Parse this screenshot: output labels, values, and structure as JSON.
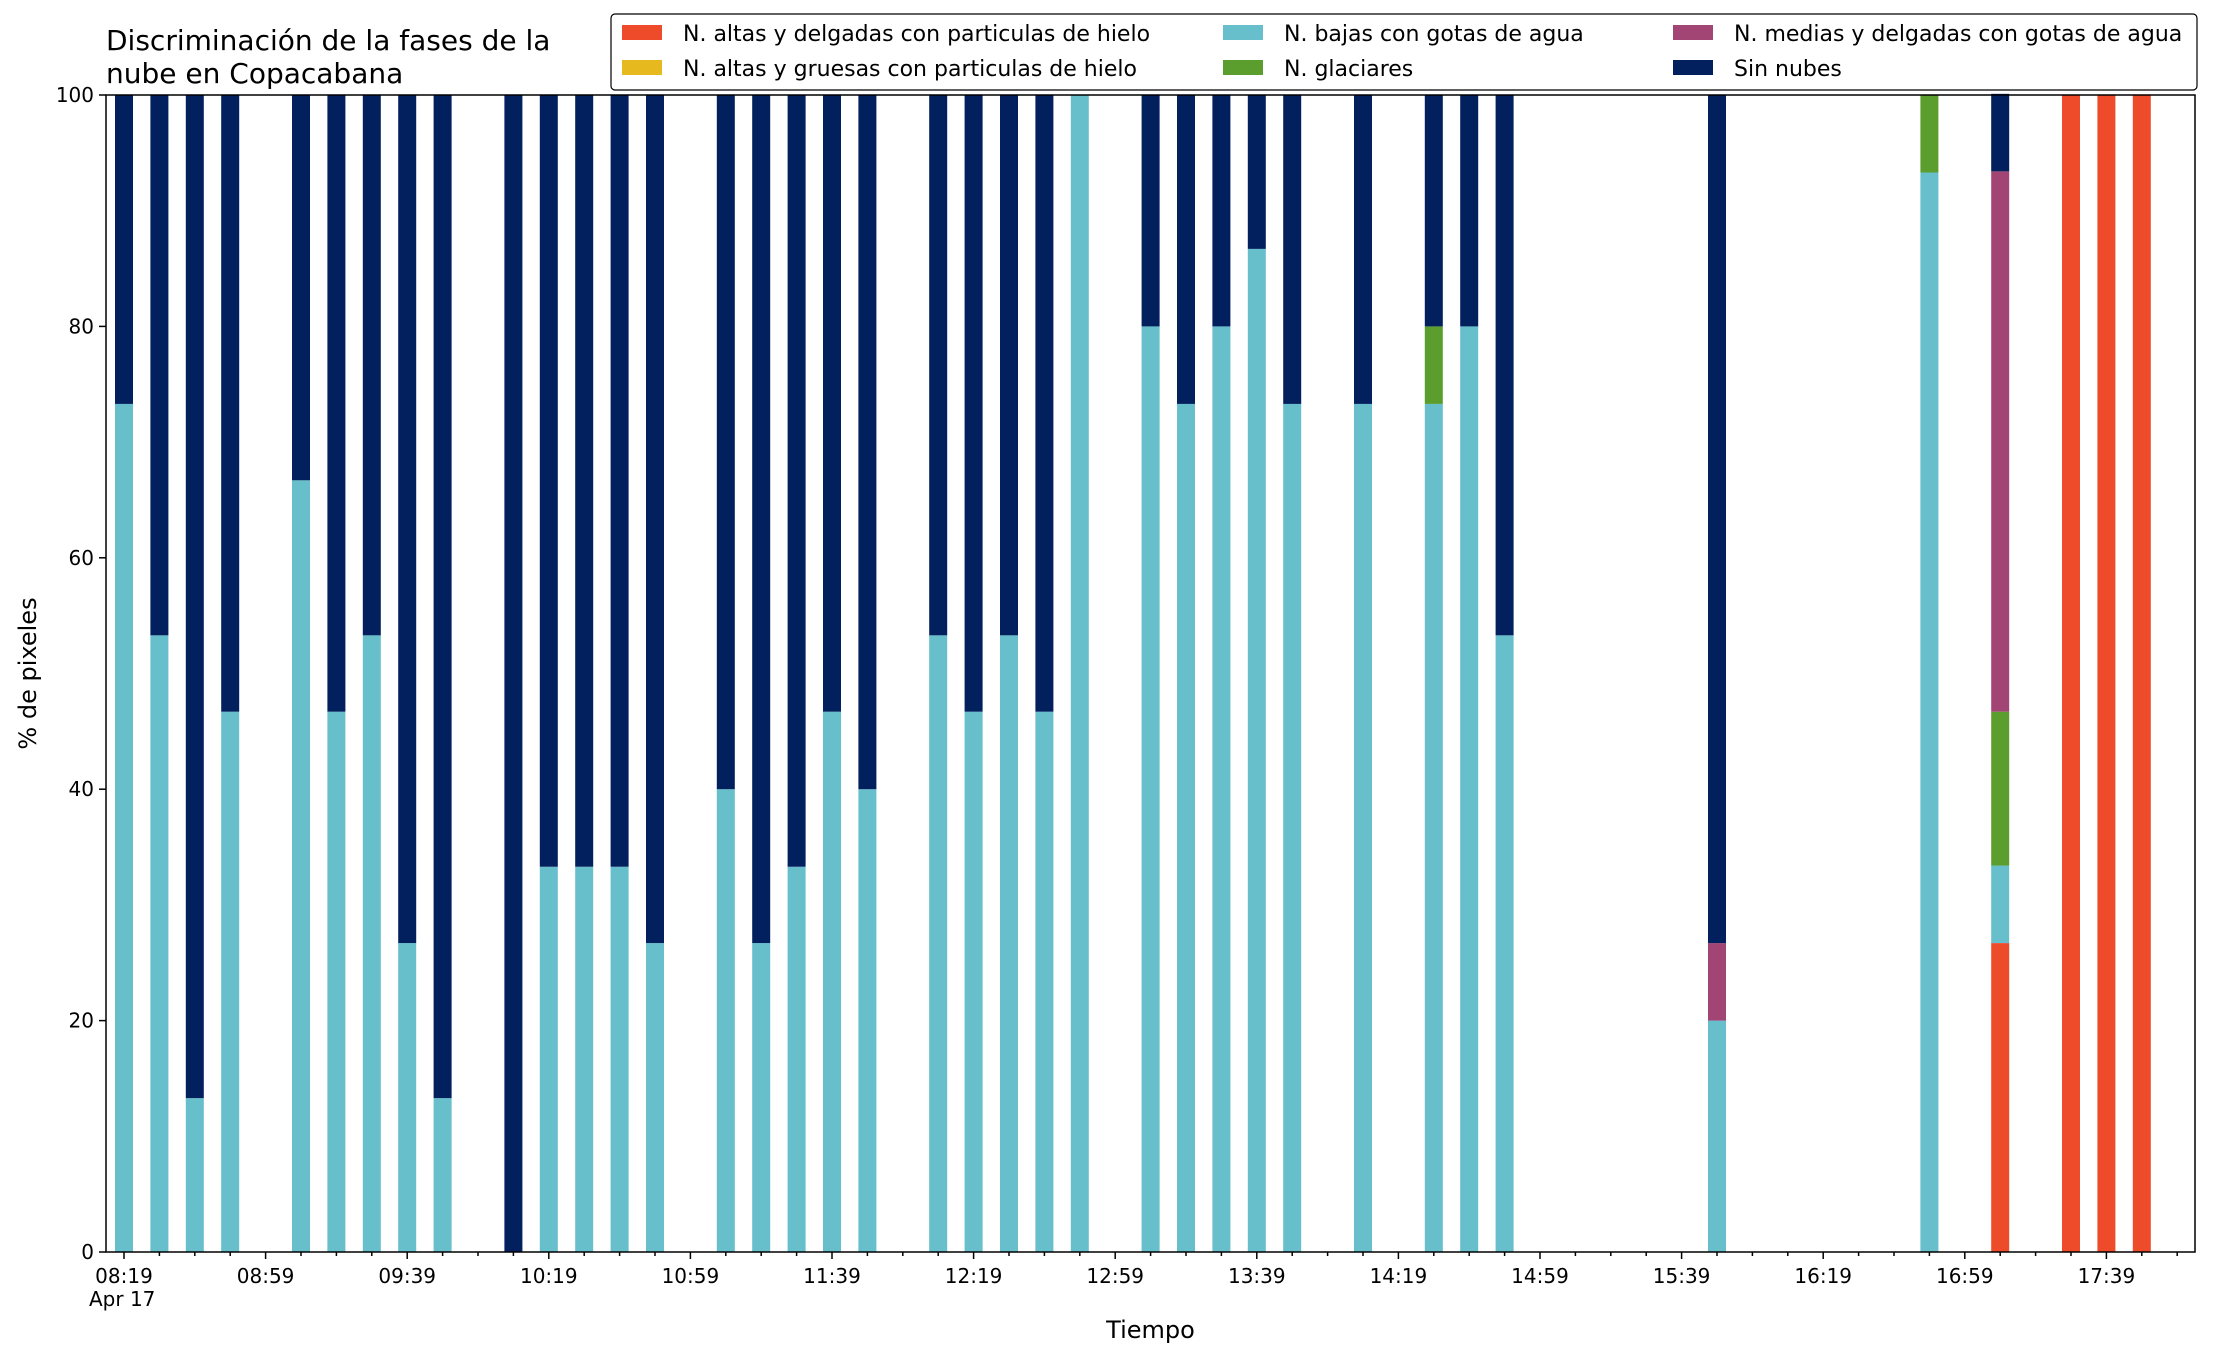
{
  "chart_data": {
    "type": "bar",
    "stacked": true,
    "title_lines": [
      "Discriminación de la fases de la",
      "nube en Copacabana"
    ],
    "xlabel": "Tiempo",
    "ylabel": "% de pixeles",
    "ylim": [
      0,
      100
    ],
    "y_ticks": [
      0,
      20,
      40,
      60,
      80,
      100
    ],
    "x_tick_labels": [
      "08:19",
      "08:59",
      "09:39",
      "10:19",
      "10:59",
      "11:39",
      "12:19",
      "12:59",
      "13:39",
      "14:19",
      "14:59",
      "15:39",
      "16:19",
      "16:59",
      "17:39"
    ],
    "x_date_label": "Apr 17",
    "minutes_per_slot": 10,
    "slots_per_major_tick": 4,
    "total_slots": 59,
    "legend_position": "top-right",
    "series": [
      {
        "name": "N. altas y delgadas con particulas de hielo",
        "color": "#ee4b2b"
      },
      {
        "name": "N. altas y gruesas con particulas de hielo",
        "color": "#e6b91e"
      },
      {
        "name": "N. bajas con gotas de agua",
        "color": "#66bfcb"
      },
      {
        "name": "N. glaciares",
        "color": "#5c9e2e"
      },
      {
        "name": "N. medias y delgadas con gotas de agua",
        "color": "#a24575"
      },
      {
        "name": "Sin nubes",
        "color": "#021f5e"
      }
    ],
    "stack_order": [
      0,
      1,
      2,
      3,
      4,
      5
    ],
    "bars": [
      {
        "time": "08:19",
        "values": [
          0,
          0,
          73.3,
          0,
          0,
          26.7
        ]
      },
      {
        "time": "08:29",
        "values": [
          0,
          0,
          53.3,
          0,
          0,
          46.7
        ]
      },
      {
        "time": "08:39",
        "values": [
          0,
          0,
          13.3,
          0,
          0,
          86.7
        ]
      },
      {
        "time": "08:49",
        "values": [
          0,
          0,
          46.7,
          0,
          0,
          53.3
        ]
      },
      {
        "time": "09:09",
        "values": [
          0,
          0,
          66.7,
          0,
          0,
          33.3
        ]
      },
      {
        "time": "09:19",
        "values": [
          0,
          0,
          46.7,
          0,
          0,
          53.3
        ]
      },
      {
        "time": "09:29",
        "values": [
          0,
          0,
          53.3,
          0,
          0,
          46.7
        ]
      },
      {
        "time": "09:39",
        "values": [
          0,
          0,
          26.7,
          0,
          0,
          73.3
        ]
      },
      {
        "time": "09:49",
        "values": [
          0,
          0,
          13.3,
          0,
          0,
          86.7
        ]
      },
      {
        "time": "10:09",
        "values": [
          0,
          0,
          0,
          0,
          0,
          100
        ]
      },
      {
        "time": "10:19",
        "values": [
          0,
          0,
          33.3,
          0,
          0,
          66.7
        ]
      },
      {
        "time": "10:29",
        "values": [
          0,
          0,
          33.3,
          0,
          0,
          66.7
        ]
      },
      {
        "time": "10:39",
        "values": [
          0,
          0,
          33.3,
          0,
          0,
          66.7
        ]
      },
      {
        "time": "10:49",
        "values": [
          0,
          0,
          26.7,
          0,
          0,
          73.3
        ]
      },
      {
        "time": "11:09",
        "values": [
          0,
          0,
          40,
          0,
          0,
          60
        ]
      },
      {
        "time": "11:19",
        "values": [
          0,
          0,
          26.7,
          0,
          0,
          73.3
        ]
      },
      {
        "time": "11:29",
        "values": [
          0,
          0,
          33.3,
          0,
          0,
          66.7
        ]
      },
      {
        "time": "11:39",
        "values": [
          0,
          0,
          46.7,
          0,
          0,
          53.3
        ]
      },
      {
        "time": "11:49",
        "values": [
          0,
          0,
          40,
          0,
          0,
          60
        ]
      },
      {
        "time": "12:09",
        "values": [
          0,
          0,
          53.3,
          0,
          0,
          46.7
        ]
      },
      {
        "time": "12:19",
        "values": [
          0,
          0,
          46.7,
          0,
          0,
          53.3
        ]
      },
      {
        "time": "12:29",
        "values": [
          0,
          0,
          53.3,
          0,
          0,
          46.7
        ]
      },
      {
        "time": "12:39",
        "values": [
          0,
          0,
          46.7,
          0,
          0,
          53.3
        ]
      },
      {
        "time": "12:49",
        "values": [
          0,
          0,
          100,
          0,
          0,
          0
        ]
      },
      {
        "time": "13:09",
        "values": [
          0,
          0,
          80,
          0,
          0,
          20
        ]
      },
      {
        "time": "13:19",
        "values": [
          0,
          0,
          73.3,
          0,
          0,
          26.7
        ]
      },
      {
        "time": "13:29",
        "values": [
          0,
          0,
          80,
          0,
          0,
          20
        ]
      },
      {
        "time": "13:39",
        "values": [
          0,
          0,
          86.7,
          0,
          0,
          13.3
        ]
      },
      {
        "time": "13:49",
        "values": [
          0,
          0,
          73.3,
          0,
          0,
          26.7
        ]
      },
      {
        "time": "14:09",
        "values": [
          0,
          0,
          73.3,
          0,
          0,
          26.7
        ]
      },
      {
        "time": "14:29",
        "values": [
          0,
          0,
          73.3,
          6.7,
          0,
          20
        ]
      },
      {
        "time": "14:39",
        "values": [
          0,
          0,
          80,
          0,
          0,
          20
        ]
      },
      {
        "time": "14:49",
        "values": [
          0,
          0,
          53.3,
          0,
          0,
          46.7
        ]
      },
      {
        "time": "15:49",
        "values": [
          0,
          0,
          20,
          0,
          6.7,
          73.3
        ]
      },
      {
        "time": "16:49",
        "values": [
          0,
          0,
          93.3,
          6.7,
          0,
          0
        ]
      },
      {
        "time": "17:09",
        "values": [
          26.7,
          0,
          6.7,
          13.3,
          46.7,
          6.7
        ]
      },
      {
        "time": "17:29",
        "values": [
          100,
          0,
          0,
          0,
          0,
          0
        ]
      },
      {
        "time": "17:39",
        "values": [
          100,
          0,
          0,
          0,
          0,
          0
        ]
      },
      {
        "time": "17:49",
        "values": [
          100,
          0,
          0,
          0,
          0,
          0
        ]
      }
    ]
  }
}
